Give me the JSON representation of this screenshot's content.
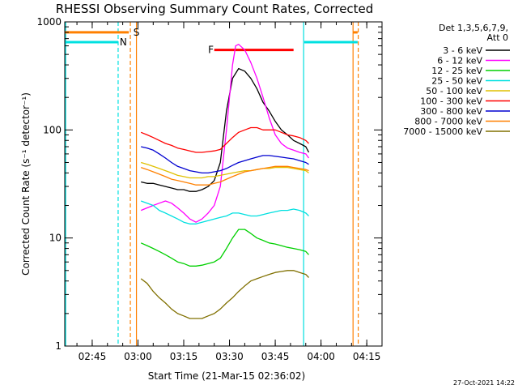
{
  "chart_data": {
    "type": "line",
    "title": "RHESSI Observing Summary Count Rates, Corrected",
    "xlabel": "Start Time (21-Mar-15 02:36:02)",
    "ylabel": "Corrected Count Rate (s⁻¹ detector⁻¹)",
    "y_scale": "log",
    "ylim": [
      1,
      1000
    ],
    "xlim_minutes_after_0236": [
      0,
      104
    ],
    "x_ticks": [
      {
        "label": "02:45",
        "minutes": 9
      },
      {
        "label": "03:00",
        "minutes": 24
      },
      {
        "label": "03:15",
        "minutes": 39
      },
      {
        "label": "03:30",
        "minutes": 54
      },
      {
        "label": "03:45",
        "minutes": 69
      },
      {
        "label": "04:00",
        "minutes": 84
      },
      {
        "label": "04:15",
        "minutes": 99
      }
    ],
    "y_ticks": [
      {
        "label": "1",
        "value": 1
      },
      {
        "label": "10",
        "value": 10
      },
      {
        "label": "100",
        "value": 100
      },
      {
        "label": "1000",
        "value": 1000
      }
    ],
    "legend_header": [
      "Det 1,3,5,6,7,9,",
      "Att 0"
    ],
    "legend_placement": "right",
    "series": [
      {
        "name": "3 - 6 keV",
        "color": "#000000",
        "x": [
          25,
          27,
          29,
          31,
          33,
          35,
          37,
          39,
          41,
          43,
          45,
          47,
          49,
          51,
          53,
          55,
          57,
          59,
          61,
          63,
          65,
          67,
          69,
          71,
          73,
          75,
          77,
          79,
          80
        ],
        "y": [
          33,
          32,
          32,
          31,
          30,
          29,
          28,
          28,
          27,
          27,
          28,
          30,
          34,
          50,
          150,
          300,
          370,
          350,
          300,
          240,
          180,
          150,
          120,
          100,
          90,
          80,
          75,
          70,
          62
        ]
      },
      {
        "name": "6 - 12 keV",
        "color": "#ff00ff",
        "x": [
          25,
          27,
          29,
          31,
          33,
          35,
          37,
          39,
          41,
          43,
          45,
          47,
          49,
          51,
          53,
          55,
          56,
          57,
          59,
          61,
          63,
          65,
          67,
          69,
          71,
          73,
          75,
          77,
          79,
          80
        ],
        "y": [
          18,
          19,
          20,
          21,
          22,
          21,
          19,
          17,
          15,
          14,
          15,
          17,
          20,
          30,
          100,
          400,
          600,
          620,
          550,
          420,
          300,
          200,
          130,
          90,
          75,
          68,
          65,
          62,
          60,
          55
        ]
      },
      {
        "name": "12 - 25 keV",
        "color": "#00d000",
        "x": [
          25,
          27,
          29,
          31,
          33,
          35,
          37,
          39,
          41,
          43,
          45,
          47,
          49,
          51,
          53,
          55,
          57,
          59,
          61,
          63,
          65,
          67,
          69,
          71,
          73,
          75,
          77,
          79,
          80
        ],
        "y": [
          9,
          8.5,
          8,
          7.5,
          7,
          6.5,
          6,
          5.8,
          5.5,
          5.5,
          5.6,
          5.8,
          6,
          6.5,
          8,
          10,
          12,
          12,
          11,
          10,
          9.5,
          9,
          8.8,
          8.5,
          8.2,
          8,
          7.8,
          7.5,
          7
        ]
      },
      {
        "name": "25 - 50 keV",
        "color": "#00e0e0",
        "x": [
          25,
          27,
          29,
          31,
          33,
          35,
          37,
          39,
          41,
          43,
          45,
          47,
          49,
          51,
          53,
          55,
          57,
          59,
          61,
          63,
          65,
          67,
          69,
          71,
          73,
          75,
          77,
          79,
          80
        ],
        "y": [
          22,
          21,
          20,
          18,
          17,
          16,
          15,
          14,
          13.5,
          13.5,
          14,
          14.5,
          15,
          15.5,
          16,
          17,
          17,
          16.5,
          16,
          16,
          16.5,
          17,
          17.5,
          18,
          18,
          18.5,
          18,
          17,
          16
        ]
      },
      {
        "name": "50 - 100 keV",
        "color": "#e0c000",
        "x": [
          25,
          27,
          29,
          31,
          33,
          35,
          37,
          39,
          41,
          43,
          45,
          47,
          49,
          51,
          53,
          55,
          57,
          59,
          61,
          63,
          65,
          67,
          69,
          71,
          73,
          75,
          77,
          79,
          80
        ],
        "y": [
          50,
          48,
          46,
          44,
          42,
          40,
          38,
          37,
          36,
          36,
          36,
          37,
          37,
          38,
          39,
          40,
          41,
          42,
          42,
          43,
          44,
          44,
          45,
          45,
          45,
          44,
          43,
          42,
          40
        ]
      },
      {
        "name": "100 - 300 keV",
        "color": "#ff0000",
        "x": [
          25,
          27,
          29,
          31,
          33,
          35,
          37,
          39,
          41,
          43,
          45,
          47,
          49,
          51,
          53,
          55,
          57,
          59,
          61,
          63,
          65,
          67,
          69,
          71,
          73,
          75,
          77,
          79,
          80
        ],
        "y": [
          95,
          90,
          85,
          80,
          75,
          72,
          68,
          66,
          64,
          62,
          62,
          63,
          64,
          66,
          75,
          85,
          95,
          100,
          105,
          105,
          100,
          100,
          100,
          95,
          90,
          88,
          85,
          80,
          75
        ]
      },
      {
        "name": "300 - 800 keV",
        "color": "#0000d0",
        "x": [
          25,
          27,
          29,
          31,
          33,
          35,
          37,
          39,
          41,
          43,
          45,
          47,
          49,
          51,
          53,
          55,
          57,
          59,
          61,
          63,
          65,
          67,
          69,
          71,
          73,
          75,
          77,
          79,
          80
        ],
        "y": [
          70,
          68,
          65,
          60,
          55,
          50,
          46,
          44,
          42,
          41,
          40,
          40,
          41,
          42,
          44,
          47,
          50,
          52,
          54,
          56,
          58,
          58,
          57,
          56,
          55,
          54,
          52,
          50,
          48
        ]
      },
      {
        "name": "800 - 7000 keV",
        "color": "#ff8000",
        "x": [
          25,
          27,
          29,
          31,
          33,
          35,
          37,
          39,
          41,
          43,
          45,
          47,
          49,
          51,
          53,
          55,
          57,
          59,
          61,
          63,
          65,
          67,
          69,
          71,
          73,
          75,
          77,
          79,
          80
        ],
        "y": [
          45,
          43,
          41,
          39,
          37,
          35,
          34,
          33,
          32,
          31,
          31,
          31,
          32,
          33,
          35,
          37,
          39,
          41,
          42,
          43,
          44,
          45,
          46,
          46,
          46,
          45,
          44,
          43,
          42
        ]
      },
      {
        "name": "7000 - 15000 keV",
        "color": "#807000",
        "x": [
          25,
          27,
          29,
          31,
          33,
          35,
          37,
          39,
          41,
          43,
          45,
          47,
          49,
          51,
          53,
          55,
          57,
          59,
          61,
          63,
          65,
          67,
          69,
          71,
          73,
          75,
          77,
          79,
          80
        ],
        "y": [
          4.2,
          3.8,
          3.2,
          2.8,
          2.5,
          2.2,
          2,
          1.9,
          1.8,
          1.8,
          1.8,
          1.9,
          2,
          2.2,
          2.5,
          2.8,
          3.2,
          3.6,
          4,
          4.2,
          4.4,
          4.6,
          4.8,
          4.9,
          5,
          5,
          4.8,
          4.6,
          4.3
        ]
      }
    ],
    "annotations": [
      {
        "text": "S",
        "color": "#ff8000",
        "x_minutes": 22.5,
        "y": 800
      },
      {
        "text": "N",
        "color": "#00e0e0",
        "x_minutes": 18,
        "y": 650
      },
      {
        "text": "F",
        "color": "#ff0000",
        "x_minutes": 47,
        "y": 550
      }
    ],
    "flag_bars": [
      {
        "label": "S",
        "color": "#ff8000",
        "y": 800,
        "segments": [
          [
            0,
            21
          ],
          [
            94.5,
            96
          ]
        ]
      },
      {
        "label": "N",
        "color": "#00e0e0",
        "y": 650,
        "segments": [
          [
            0,
            17.5
          ],
          [
            78.5,
            96
          ]
        ]
      },
      {
        "label": "F",
        "color": "#ff0000",
        "y": 550,
        "segments": [
          [
            49,
            75
          ]
        ]
      }
    ],
    "vertical_lines": [
      {
        "color": "#00e0e0",
        "style": "dashed",
        "x_minutes": 17.5
      },
      {
        "color": "#ff8000",
        "style": "dashed",
        "x_minutes": 21.5
      },
      {
        "color": "#ff8000",
        "style": "solid",
        "x_minutes": 23.5
      },
      {
        "color": "#00e0e0",
        "style": "solid",
        "x_minutes": 78.3
      },
      {
        "color": "#00e0e0",
        "style": "solid",
        "x_minutes": 0.3
      },
      {
        "color": "#ff8000",
        "style": "solid",
        "x_minutes": 94.5
      },
      {
        "color": "#ff8000",
        "style": "dashed",
        "x_minutes": 96.2
      }
    ],
    "timestamp": "27-Oct-2021 14:22"
  }
}
